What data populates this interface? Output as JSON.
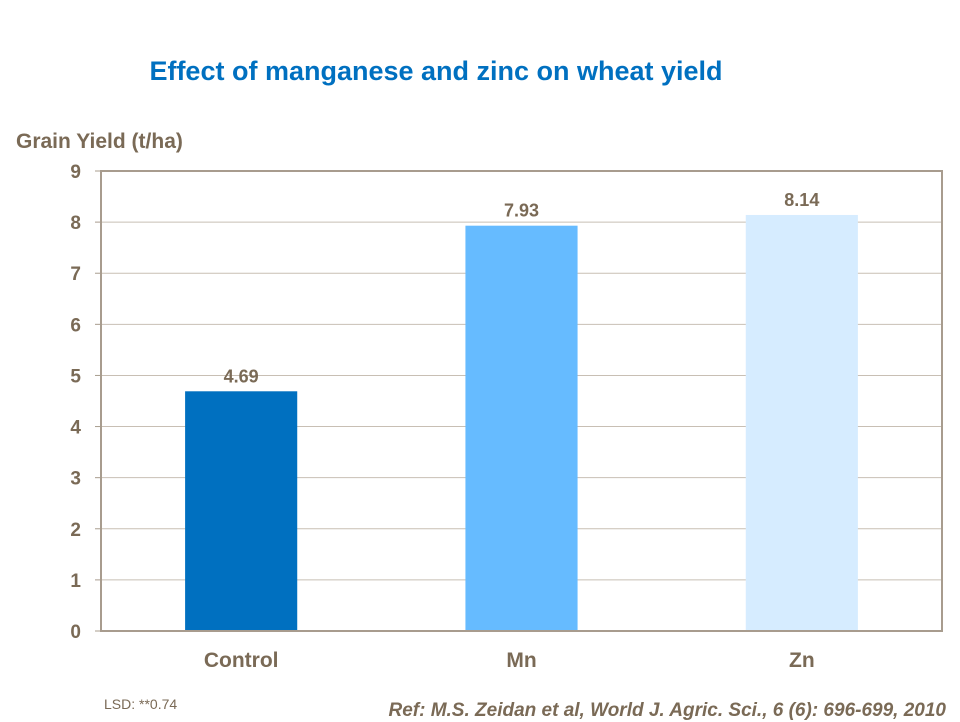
{
  "chart_data": {
    "type": "bar",
    "title": "Effect of manganese and zinc on wheat yield",
    "ylabel": "Grain Yield (t/ha)",
    "xlabel": "",
    "categories": [
      "Control",
      "Mn",
      "Zn"
    ],
    "values": [
      4.69,
      7.93,
      8.14
    ],
    "data_labels": [
      "4.69",
      "7.93",
      "8.14"
    ],
    "bar_colors": [
      "#0070c0",
      "#66bbff",
      "#d6ecff"
    ],
    "ylim": [
      0,
      9
    ],
    "yticks": [
      0,
      1,
      2,
      3,
      4,
      5,
      6,
      7,
      8,
      9
    ],
    "grid": true,
    "legend": "none"
  },
  "notes": {
    "lsd": "LSD: **0.74",
    "reference": "Ref: M.S. Zeidan et al, World J. Agric. Sci., 6 (6): 696-699, 2010"
  }
}
